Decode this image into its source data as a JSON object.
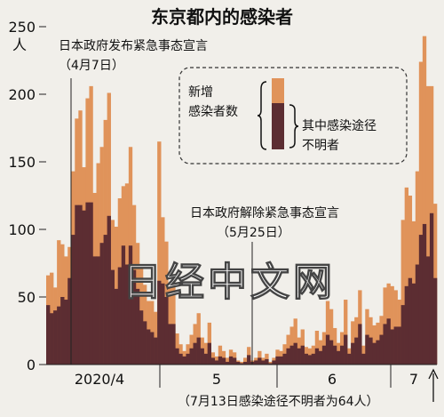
{
  "chart_data": {
    "type": "bar",
    "title": "东京都内的感染者",
    "y_unit": "人",
    "ylim": [
      0,
      250
    ],
    "y_ticks": [
      0,
      50,
      100,
      150,
      200,
      250
    ],
    "x_month_labels": [
      "2020/4",
      "5",
      "6",
      "7"
    ],
    "grid": false,
    "legend_placement": "top-right",
    "series": [
      {
        "name": "新增感染者数",
        "color": "#e0935a",
        "values": [
          66,
          68,
          57,
          92,
          89,
          80,
          87,
          143,
          182,
          188,
          146,
          197,
          206,
          127,
          149,
          161,
          181,
          201,
          107,
          102,
          123,
          132,
          134,
          161,
          118,
          90,
          72,
          59,
          47,
          47,
          39,
          165,
          109,
          91,
          57,
          58,
          23,
          15,
          10,
          15,
          22,
          30,
          38,
          20,
          16,
          31,
          9,
          6,
          14,
          10,
          5,
          11,
          9,
          3,
          2,
          5,
          13,
          3,
          5,
          10,
          5,
          8,
          2,
          5,
          11,
          10,
          15,
          22,
          28,
          34,
          20,
          26,
          13,
          12,
          14,
          25,
          18,
          24,
          47,
          41,
          27,
          16,
          24,
          48,
          12,
          32,
          35,
          55,
          14,
          41,
          35,
          29,
          31,
          36,
          57,
          60,
          58,
          55,
          48,
          107,
          131,
          125,
          106,
          143,
          224,
          243,
          206,
          206,
          119
        ]
      },
      {
        "name": "其中感染途径不明者",
        "color": "#5c2d32",
        "values": [
          44,
          38,
          40,
          43,
          50,
          48,
          64,
          96,
          118,
          118,
          114,
          120,
          120,
          80,
          80,
          90,
          96,
          110,
          70,
          56,
          72,
          88,
          74,
          88,
          70,
          56,
          40,
          32,
          26,
          24,
          20,
          62,
          60,
          50,
          30,
          30,
          12,
          8,
          6,
          8,
          12,
          16,
          20,
          12,
          8,
          16,
          5,
          3,
          6,
          5,
          2,
          6,
          5,
          2,
          1,
          2,
          7,
          2,
          3,
          5,
          3,
          4,
          1,
          3,
          6,
          6,
          8,
          12,
          14,
          16,
          12,
          14,
          8,
          7,
          8,
          12,
          10,
          14,
          22,
          18,
          14,
          10,
          14,
          22,
          8,
          16,
          20,
          30,
          8,
          22,
          20,
          16,
          18,
          22,
          30,
          34,
          26,
          28,
          28,
          44,
          58,
          64,
          60,
          74,
          96,
          104,
          80,
          112,
          64
        ]
      }
    ],
    "annotations": [
      {
        "text_line1": "日本政府发布紧急事态宣言",
        "text_line2": "（4月7日）"
      },
      {
        "text_line1": "日本政府解除紧急事态宣言",
        "text_line2": "（5月25日）"
      }
    ],
    "legend": {
      "item1_line1": "新增",
      "item1_line2": "感染者数",
      "item2_line1": "其中感染途径",
      "item2_line2": "不明者"
    },
    "footnote": "（7月13日感染途径不明者为64人）",
    "watermark": "日经中文网"
  }
}
